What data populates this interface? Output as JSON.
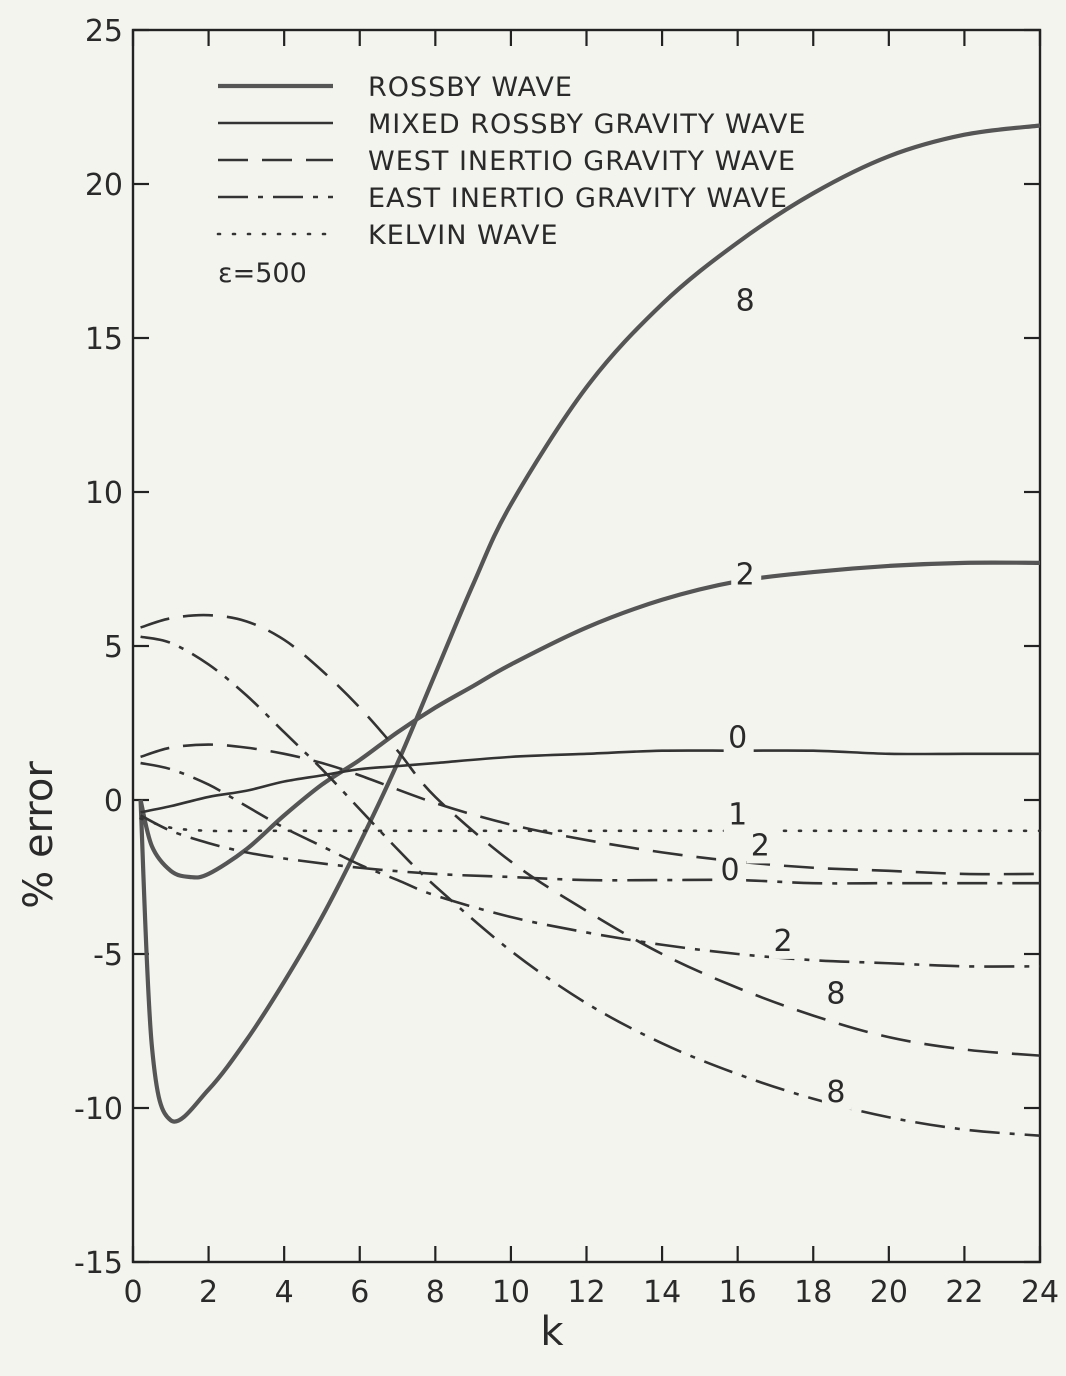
{
  "chart_data": {
    "type": "line",
    "title": "",
    "xlabel": "k",
    "ylabel": "% error",
    "xlim": [
      0,
      24
    ],
    "ylim": [
      -15,
      25
    ],
    "x_ticks": [
      "0",
      "2",
      "4",
      "6",
      "8",
      "10",
      "12",
      "14",
      "16",
      "18",
      "20",
      "22",
      "24"
    ],
    "y_ticks": [
      "-15",
      "-10",
      "-5",
      "0",
      "5",
      "10",
      "15",
      "20",
      "25"
    ],
    "grid": false,
    "legend_position": "top-left",
    "annotation": "ε=500",
    "legend": [
      {
        "key": "rossby",
        "label": "ROSSBY WAVE",
        "style": "thick-solid"
      },
      {
        "key": "mixed",
        "label": "MIXED ROSSBY GRAVITY WAVE",
        "style": "solid"
      },
      {
        "key": "west",
        "label": "WEST INERTIO GRAVITY WAVE",
        "style": "dashed"
      },
      {
        "key": "east",
        "label": "EAST INERTIO GRAVITY WAVE",
        "style": "dash-dot"
      },
      {
        "key": "kelvin",
        "label": "KELVIN WAVE",
        "style": "dotted"
      }
    ],
    "series": [
      {
        "type": "rossby",
        "label": "8",
        "label_x": 16.2,
        "label_y": 15.9,
        "x": [
          0.2,
          0.5,
          1,
          2,
          3,
          4,
          5,
          6,
          7,
          8,
          9,
          10,
          12,
          14,
          16,
          18,
          20,
          22,
          24
        ],
        "y": [
          0,
          -8,
          -10.4,
          -9.4,
          -7.8,
          -5.9,
          -3.8,
          -1.4,
          1.2,
          4.1,
          7,
          9.6,
          13.4,
          16.1,
          18.1,
          19.7,
          20.9,
          21.6,
          21.9
        ]
      },
      {
        "type": "rossby",
        "label": "2",
        "label_x": 16.2,
        "label_y": 7.0,
        "x": [
          0.2,
          0.5,
          1,
          1.5,
          2,
          3,
          4,
          5,
          6,
          7,
          8,
          9,
          10,
          12,
          14,
          16,
          18,
          20,
          22,
          24
        ],
        "y": [
          0,
          -1.5,
          -2.3,
          -2.5,
          -2.4,
          -1.6,
          -0.5,
          0.5,
          1.3,
          2.2,
          3,
          3.7,
          4.4,
          5.6,
          6.5,
          7.1,
          7.4,
          7.6,
          7.7,
          7.7
        ]
      },
      {
        "type": "mixed",
        "label": "0",
        "label_x": 16.0,
        "label_y": 1.7,
        "x": [
          0.2,
          1,
          2,
          3,
          4,
          5,
          6,
          7,
          8,
          10,
          12,
          14,
          16,
          18,
          20,
          22,
          24
        ],
        "y": [
          -0.4,
          -0.2,
          0.1,
          0.3,
          0.6,
          0.8,
          1.0,
          1.1,
          1.2,
          1.4,
          1.5,
          1.6,
          1.6,
          1.6,
          1.5,
          1.5,
          1.5
        ]
      },
      {
        "type": "west",
        "label": "2",
        "label_x": 16.6,
        "label_y": -1.8,
        "x": [
          0.2,
          1,
          2,
          3,
          4,
          5,
          6,
          8,
          10,
          12,
          14,
          16,
          18,
          20,
          22,
          24
        ],
        "y": [
          1.4,
          1.7,
          1.8,
          1.7,
          1.5,
          1.2,
          0.8,
          -0.1,
          -0.8,
          -1.3,
          -1.7,
          -2.0,
          -2.2,
          -2.3,
          -2.4,
          -2.4
        ]
      },
      {
        "type": "west",
        "label": "8",
        "label_x": 18.6,
        "label_y": -6.6,
        "x": [
          0.2,
          1,
          2,
          3,
          4,
          5,
          6,
          7,
          8,
          10,
          12,
          14,
          16,
          18,
          20,
          22,
          24
        ],
        "y": [
          5.6,
          5.9,
          6.0,
          5.8,
          5.2,
          4.2,
          3.0,
          1.6,
          0.1,
          -2.0,
          -3.6,
          -5.0,
          -6.1,
          -7.0,
          -7.7,
          -8.1,
          -8.3
        ]
      },
      {
        "type": "east",
        "label": "0",
        "label_x": 15.8,
        "label_y": -2.6,
        "x": [
          0.2,
          1,
          2,
          3,
          4,
          6,
          8,
          10,
          12,
          14,
          16,
          18,
          20,
          22,
          24
        ],
        "y": [
          -0.5,
          -1.0,
          -1.4,
          -1.7,
          -1.9,
          -2.2,
          -2.4,
          -2.5,
          -2.6,
          -2.6,
          -2.6,
          -2.7,
          -2.7,
          -2.7,
          -2.7
        ]
      },
      {
        "type": "east",
        "label": "2",
        "label_x": 17.2,
        "label_y": -4.9,
        "x": [
          0.2,
          1,
          2,
          3,
          4,
          5,
          6,
          7,
          8,
          10,
          12,
          14,
          16,
          18,
          20,
          22,
          24
        ],
        "y": [
          1.2,
          1.0,
          0.5,
          -0.2,
          -0.9,
          -1.5,
          -2.1,
          -2.6,
          -3.1,
          -3.8,
          -4.3,
          -4.7,
          -5.0,
          -5.2,
          -5.3,
          -5.4,
          -5.4
        ]
      },
      {
        "type": "east",
        "label": "8",
        "label_x": 18.6,
        "label_y": -9.8,
        "x": [
          0.2,
          1,
          2,
          3,
          4,
          5,
          6,
          7,
          8,
          10,
          12,
          14,
          16,
          18,
          20,
          22,
          24
        ],
        "y": [
          5.3,
          5.1,
          4.4,
          3.4,
          2.2,
          1.0,
          -0.3,
          -1.6,
          -2.8,
          -4.9,
          -6.6,
          -7.9,
          -8.9,
          -9.7,
          -10.3,
          -10.7,
          -10.9
        ]
      },
      {
        "type": "kelvin",
        "label": "1",
        "label_x": 16.0,
        "label_y": -0.8,
        "x": [
          0.2,
          1,
          2,
          3,
          4,
          6,
          8,
          10,
          12,
          14,
          16,
          18,
          20,
          22,
          24
        ],
        "y": [
          -0.6,
          -0.9,
          -1.0,
          -1.0,
          -1.0,
          -1.0,
          -1.0,
          -1.0,
          -1.0,
          -1.0,
          -1.0,
          -1.0,
          -1.0,
          -1.0,
          -1.0
        ]
      }
    ]
  }
}
